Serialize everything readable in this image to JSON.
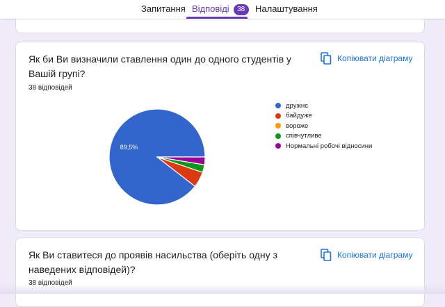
{
  "tabs": [
    {
      "label": "Запитання"
    },
    {
      "label": "Відповіді",
      "badge": "38"
    },
    {
      "label": "Налаштування"
    }
  ],
  "accent_color": "#673ab7",
  "questions": [
    {
      "title": "Як би Ви визначили ставлення один до одного студентів у Вашій групі?",
      "response_count": "38 відповідей",
      "copy_label": "Копіювати діаграму"
    },
    {
      "title": "Як Ви ставитеся до проявів насильства (оберіть одну з наведених відповідей)?",
      "response_count": "38 відповідей",
      "copy_label": "Копіювати діаграму"
    }
  ],
  "chart_data": {
    "type": "pie",
    "categories": [
      "дружнє",
      "байдуже",
      "вороже",
      "співчутливе",
      "Нормальні робочі відносини"
    ],
    "values": [
      89.5,
      5.3,
      0,
      2.6,
      2.6
    ],
    "colors": [
      "#3366cc",
      "#dc3912",
      "#ff9900",
      "#109618",
      "#990099"
    ],
    "data_labels": [
      "89,5%",
      "",
      "",
      "",
      ""
    ],
    "legend_position": "right"
  }
}
